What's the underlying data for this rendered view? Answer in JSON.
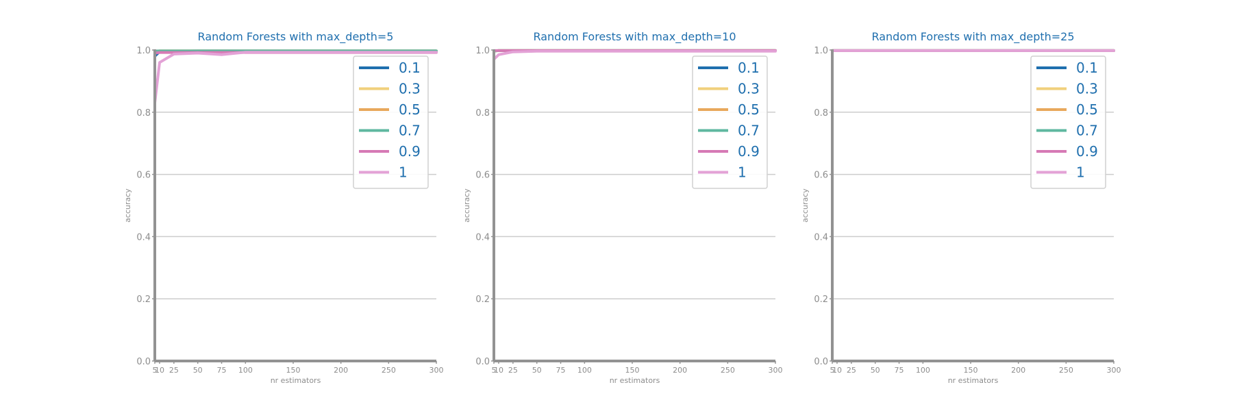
{
  "chart_data": [
    {
      "type": "line",
      "title": "Random Forests with max_depth=5",
      "xlabel": "nr estimators",
      "ylabel": "accuracy",
      "ylim": [
        0.0,
        1.0
      ],
      "xlim": [
        5,
        300
      ],
      "x": [
        5,
        10,
        25,
        50,
        75,
        100,
        150,
        200,
        250,
        300
      ],
      "x_ticks": [
        "5",
        "10",
        "25",
        "50",
        "75",
        "100",
        "150",
        "200",
        "250",
        "300"
      ],
      "y_ticks": [
        "0.0",
        "0.2",
        "0.4",
        "0.6",
        "0.8",
        "1.0"
      ],
      "grid": "horizontal",
      "legend_position": "top-right",
      "series": [
        {
          "name": "0.1",
          "color": "#1f6fae",
          "values": [
            0.98,
            0.995,
            0.996,
            0.997,
            0.997,
            0.997,
            0.997,
            0.997,
            0.997,
            0.997
          ]
        },
        {
          "name": "0.3",
          "color": "#f1d07c",
          "values": [
            0.995,
            0.997,
            0.997,
            0.997,
            0.997,
            0.997,
            0.997,
            0.997,
            0.997,
            0.997
          ]
        },
        {
          "name": "0.5",
          "color": "#e8a85c",
          "values": [
            0.995,
            0.997,
            0.997,
            0.997,
            0.997,
            0.997,
            0.997,
            0.997,
            0.997,
            0.997
          ]
        },
        {
          "name": "0.7",
          "color": "#5fb8a0",
          "values": [
            0.996,
            0.997,
            0.997,
            0.997,
            0.997,
            0.997,
            0.997,
            0.997,
            0.997,
            0.997
          ]
        },
        {
          "name": "0.9",
          "color": "#d67ab5",
          "values": [
            0.99,
            0.992,
            0.992,
            0.992,
            0.992,
            0.992,
            0.992,
            0.992,
            0.992,
            0.992
          ]
        },
        {
          "name": "1",
          "color": "#e3a2d6",
          "values": [
            0.83,
            0.96,
            0.987,
            0.99,
            0.985,
            0.993,
            0.993,
            0.993,
            0.993,
            0.993
          ]
        }
      ]
    },
    {
      "type": "line",
      "title": "Random Forests with max_depth=10",
      "xlabel": "nr estimators",
      "ylabel": "accuracy",
      "ylim": [
        0.0,
        1.0
      ],
      "xlim": [
        5,
        300
      ],
      "x": [
        5,
        10,
        25,
        50,
        75,
        100,
        150,
        200,
        250,
        300
      ],
      "x_ticks": [
        "5",
        "10",
        "25",
        "50",
        "75",
        "100",
        "150",
        "200",
        "250",
        "300"
      ],
      "y_ticks": [
        "0.0",
        "0.2",
        "0.4",
        "0.6",
        "0.8",
        "1.0"
      ],
      "grid": "horizontal",
      "legend_position": "top-right",
      "series": [
        {
          "name": "0.1",
          "color": "#1f6fae",
          "values": [
            0.997,
            0.998,
            0.998,
            0.998,
            0.998,
            0.998,
            0.998,
            0.998,
            0.998,
            0.998
          ]
        },
        {
          "name": "0.3",
          "color": "#f1d07c",
          "values": [
            0.997,
            0.998,
            0.998,
            0.998,
            0.998,
            0.998,
            0.998,
            0.998,
            0.998,
            0.998
          ]
        },
        {
          "name": "0.5",
          "color": "#e8a85c",
          "values": [
            0.997,
            0.998,
            0.998,
            0.998,
            0.998,
            0.998,
            0.998,
            0.998,
            0.998,
            0.998
          ]
        },
        {
          "name": "0.7",
          "color": "#5fb8a0",
          "values": [
            0.997,
            0.998,
            0.998,
            0.998,
            0.998,
            0.998,
            0.998,
            0.998,
            0.998,
            0.998
          ]
        },
        {
          "name": "0.9",
          "color": "#d67ab5",
          "values": [
            0.998,
            0.998,
            0.998,
            0.998,
            0.998,
            0.998,
            0.998,
            0.998,
            0.998,
            0.998
          ]
        },
        {
          "name": "1",
          "color": "#e3a2d6",
          "values": [
            0.97,
            0.985,
            0.994,
            0.996,
            0.996,
            0.996,
            0.996,
            0.996,
            0.996,
            0.996
          ]
        }
      ]
    },
    {
      "type": "line",
      "title": "Random Forests with max_depth=25",
      "xlabel": "nr estimators",
      "ylabel": "accuracy",
      "ylim": [
        0.0,
        1.0
      ],
      "xlim": [
        5,
        300
      ],
      "x": [
        5,
        10,
        25,
        50,
        75,
        100,
        150,
        200,
        250,
        300
      ],
      "x_ticks": [
        "5",
        "10",
        "25",
        "50",
        "75",
        "100",
        "150",
        "200",
        "250",
        "300"
      ],
      "y_ticks": [
        "0.0",
        "0.2",
        "0.4",
        "0.6",
        "0.8",
        "1.0"
      ],
      "grid": "horizontal",
      "legend_position": "top-right",
      "series": [
        {
          "name": "0.1",
          "color": "#1f6fae",
          "values": [
            0.998,
            0.998,
            0.998,
            0.998,
            0.998,
            0.998,
            0.998,
            0.998,
            0.998,
            0.998
          ]
        },
        {
          "name": "0.3",
          "color": "#f1d07c",
          "values": [
            0.998,
            0.998,
            0.998,
            0.998,
            0.998,
            0.998,
            0.998,
            0.998,
            0.998,
            0.998
          ]
        },
        {
          "name": "0.5",
          "color": "#e8a85c",
          "values": [
            0.998,
            0.998,
            0.998,
            0.998,
            0.998,
            0.998,
            0.998,
            0.998,
            0.998,
            0.998
          ]
        },
        {
          "name": "0.7",
          "color": "#5fb8a0",
          "values": [
            0.998,
            0.998,
            0.998,
            0.998,
            0.998,
            0.998,
            0.998,
            0.998,
            0.998,
            0.998
          ]
        },
        {
          "name": "0.9",
          "color": "#d67ab5",
          "values": [
            0.998,
            0.998,
            0.998,
            0.998,
            0.998,
            0.998,
            0.998,
            0.998,
            0.998,
            0.998
          ]
        },
        {
          "name": "1",
          "color": "#e3a2d6",
          "values": [
            0.998,
            0.998,
            0.998,
            0.998,
            0.998,
            0.998,
            0.998,
            0.998,
            0.998,
            0.998
          ]
        }
      ]
    }
  ]
}
